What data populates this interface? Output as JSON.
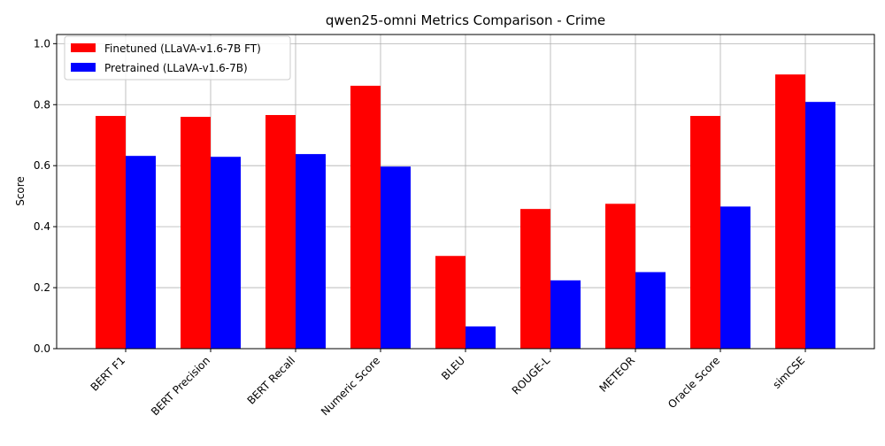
{
  "chart_data": {
    "type": "bar",
    "title": "qwen25-omni Metrics Comparison - Crime",
    "xlabel": "",
    "ylabel": "Score",
    "categories": [
      "BERT F1",
      "BERT Precision",
      "BERT Recall",
      "Numeric Score",
      "BLEU",
      "ROUGE-L",
      "METEOR",
      "Oracle Score",
      "simCSE"
    ],
    "series": [
      {
        "name": "Finetuned (LLaVA-v1.6-7B FT)",
        "color": "#ff0000",
        "values": [
          0.763,
          0.76,
          0.766,
          0.862,
          0.304,
          0.458,
          0.475,
          0.763,
          0.899
        ]
      },
      {
        "name": "Pretrained (LLaVA-v1.6-7B)",
        "color": "#0000ff",
        "values": [
          0.632,
          0.629,
          0.638,
          0.597,
          0.073,
          0.224,
          0.251,
          0.466,
          0.809
        ]
      }
    ],
    "ylim": [
      0,
      1.03
    ],
    "yticks": [
      "0.0",
      "0.2",
      "0.4",
      "0.6",
      "0.8",
      "1.0"
    ],
    "grid": true,
    "legend_position": "top-left"
  }
}
